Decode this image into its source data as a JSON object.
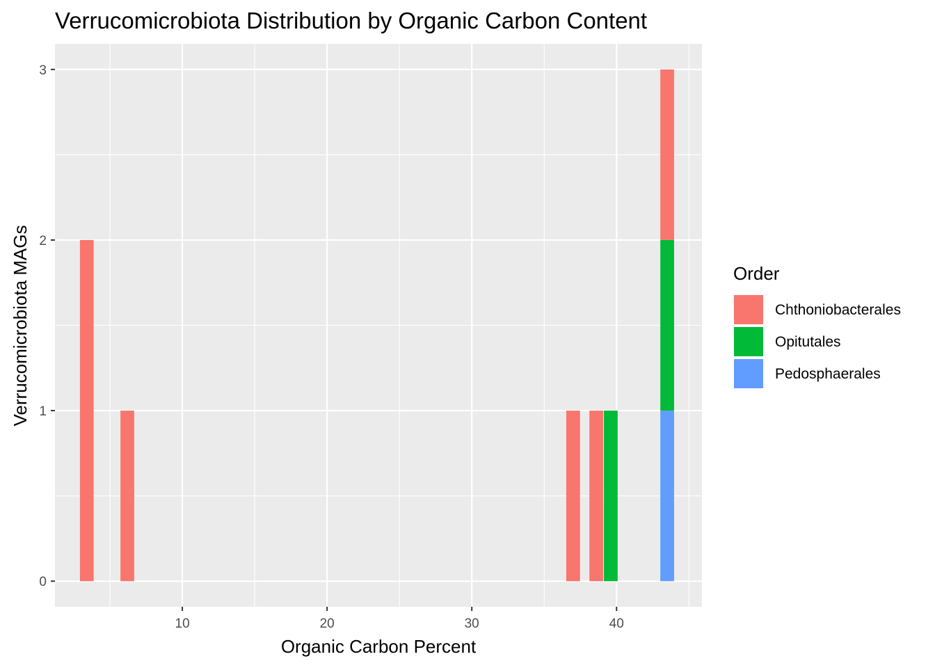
{
  "chart_data": {
    "type": "bar",
    "stacked": true,
    "title": "Verrucomicrobiota Distribution by Organic Carbon Content",
    "xlabel": "Organic Carbon Percent",
    "ylabel": "Verrucomicrobiota MAGs",
    "xlim": [
      1.2,
      45.9
    ],
    "ylim": [
      -0.15,
      3.15
    ],
    "x_ticks": [
      10,
      20,
      30,
      40
    ],
    "y_ticks": [
      0,
      1,
      2,
      3
    ],
    "grid": true,
    "bar_width": 0.95,
    "legend": {
      "title": "Order",
      "position": "right",
      "entries": [
        {
          "label": "Chthoniobacterales",
          "color": "#F8766D"
        },
        {
          "label": "Opitutales",
          "color": "#00BA38"
        },
        {
          "label": "Pedosphaerales",
          "color": "#619CFF"
        }
      ]
    },
    "bars": [
      {
        "x": 3.4,
        "segments": [
          {
            "order": "Chthoniobacterales",
            "value": 2
          }
        ]
      },
      {
        "x": 6.2,
        "segments": [
          {
            "order": "Chthoniobacterales",
            "value": 1
          }
        ]
      },
      {
        "x": 37.0,
        "segments": [
          {
            "order": "Chthoniobacterales",
            "value": 1
          }
        ]
      },
      {
        "x": 38.6,
        "segments": [
          {
            "order": "Chthoniobacterales",
            "value": 1
          }
        ]
      },
      {
        "x": 39.6,
        "segments": [
          {
            "order": "Opitutales",
            "value": 1
          }
        ]
      },
      {
        "x": 43.5,
        "segments": [
          {
            "order": "Pedosphaerales",
            "value": 1
          },
          {
            "order": "Opitutales",
            "value": 1
          },
          {
            "order": "Chthoniobacterales",
            "value": 1
          }
        ]
      }
    ]
  }
}
